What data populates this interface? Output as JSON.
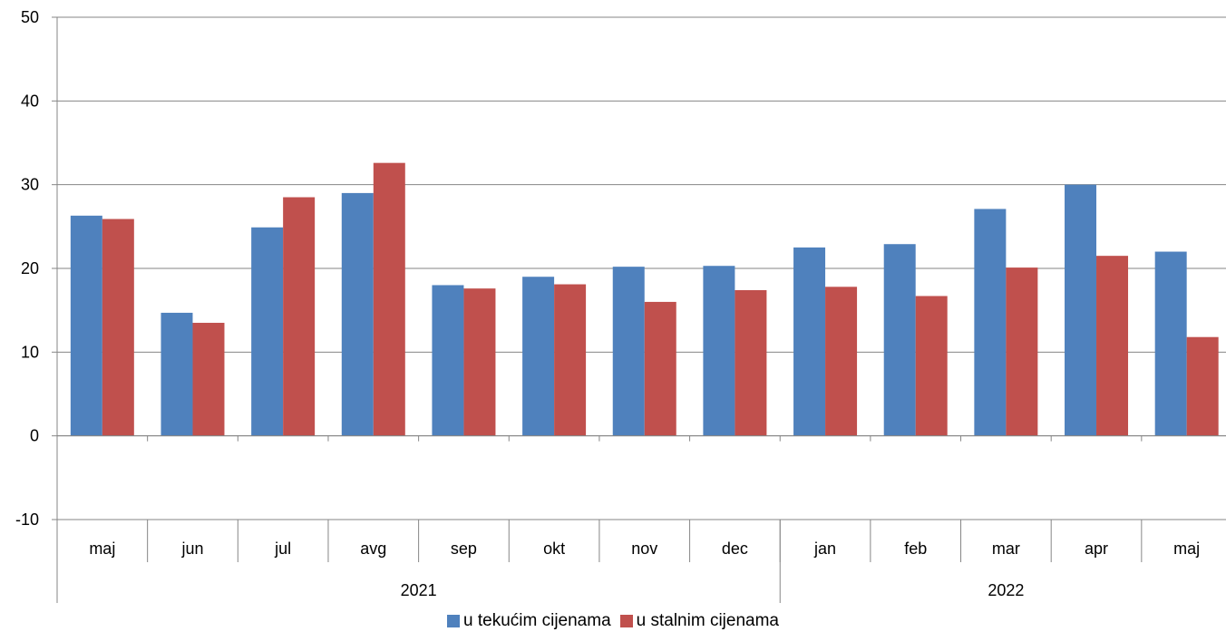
{
  "chart_data": {
    "type": "bar",
    "title": "",
    "xlabel": "",
    "ylabel": "",
    "ylim": [
      -10,
      50
    ],
    "yticks": [
      -10,
      0,
      10,
      20,
      30,
      40,
      50
    ],
    "grid": true,
    "legend_position": "bottom",
    "categories": [
      "maj",
      "jun",
      "jul",
      "avg",
      "sep",
      "okt",
      "nov",
      "dec",
      "jan",
      "feb",
      "mar",
      "apr",
      "maj"
    ],
    "groups": [
      {
        "label": "2021",
        "count": 8
      },
      {
        "label": "2022",
        "count": 5
      }
    ],
    "series": [
      {
        "name": "u tekućim cijenama",
        "color": "#4F81BD",
        "values": [
          26.3,
          14.7,
          24.9,
          29.0,
          18.0,
          19.0,
          20.2,
          20.3,
          22.5,
          22.9,
          27.1,
          30.0,
          22.0
        ]
      },
      {
        "name": "u stalnim cijenama",
        "color": "#C0504D",
        "values": [
          25.9,
          13.5,
          28.5,
          32.6,
          17.6,
          18.1,
          16.0,
          17.4,
          17.8,
          16.7,
          20.1,
          21.5,
          11.8
        ]
      }
    ]
  }
}
